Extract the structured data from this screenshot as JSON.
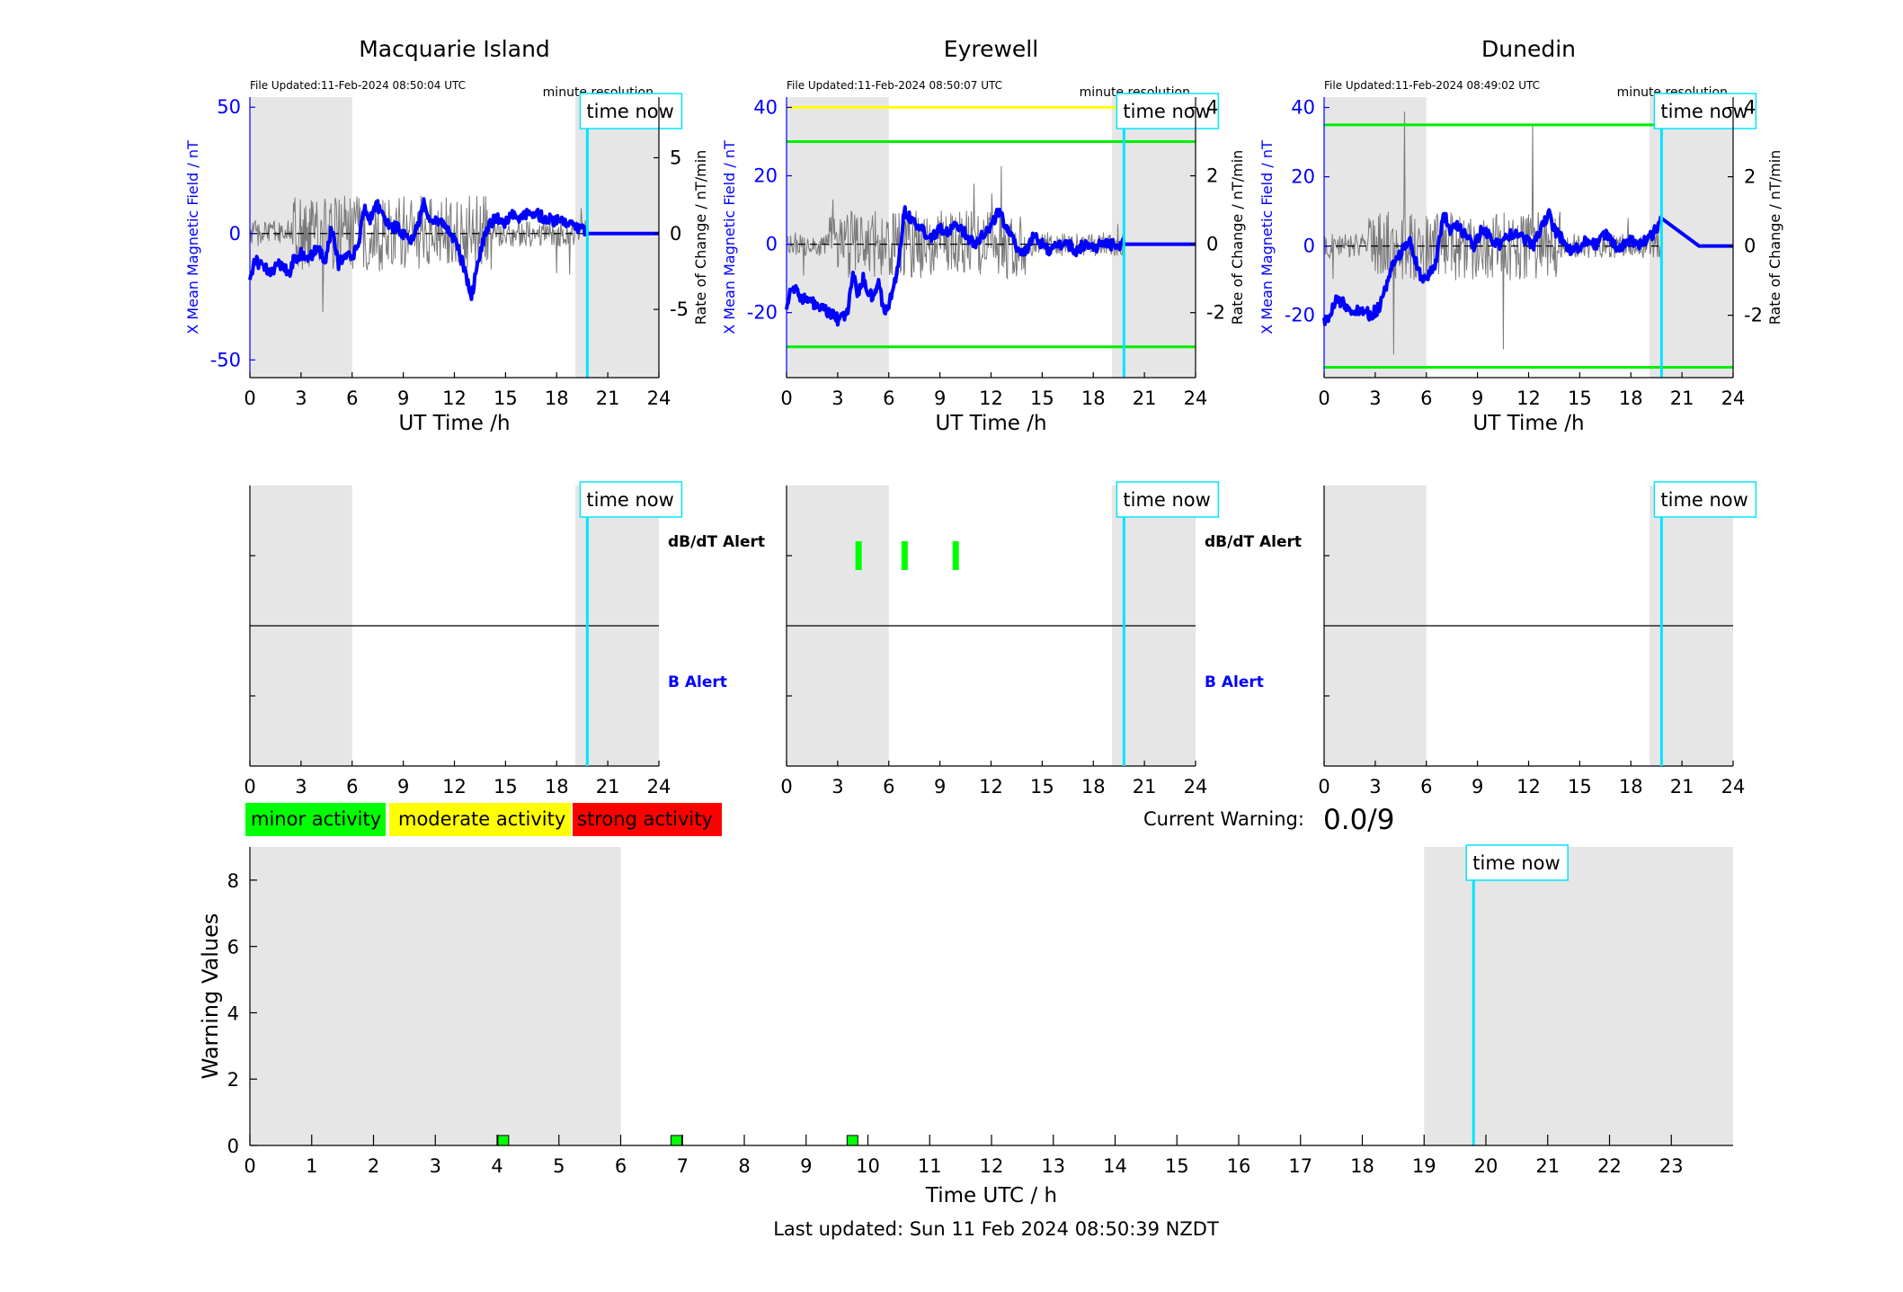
{
  "colors": {
    "night_shade": "#e6e6e6",
    "b_line": "#0000ff",
    "rate_line": "#7a7a7a",
    "time_now": "#00e5ff",
    "minor": "#00ff00",
    "moderate": "#ffff00",
    "strong": "#ff0000",
    "threshold_green": "#00ee00",
    "threshold_yellow": "#ffff00",
    "axis_blue": "#0000ff"
  },
  "legend": {
    "minor": "minor activity",
    "moderate": "moderate activity",
    "strong": "strong activity"
  },
  "current_warning": {
    "label": "Current Warning:",
    "value": "0.0/9"
  },
  "footer": {
    "last_updated": "Last updated: Sun 11 Feb 2024 08:50:39 NZDT"
  },
  "chart_data": [
    {
      "type": "line",
      "title": "Macquarie Island",
      "file_updated": "File Updated:11-Feb-2024 08:50:04 UTC",
      "resolution_label": "minute resolution",
      "time_now_label": "time now",
      "time_now": 19.8,
      "xlabel": "UT Time /h",
      "xlim": [
        0,
        24
      ],
      "xticks": [
        "0",
        "3",
        "6",
        "9",
        "12",
        "15",
        "18",
        "21",
        "24"
      ],
      "ylabel_left": "X Mean Magnetic Field / nT",
      "ylim_left": [
        -57,
        54
      ],
      "yticks_left": [
        "-50",
        "0",
        "50"
      ],
      "ylabel_right": "Rate of Change / nT/min",
      "ylim_right": [
        -9.5,
        9
      ],
      "yticks_right": [
        "-5",
        "0",
        "5"
      ],
      "night_bands": [
        [
          0,
          6
        ],
        [
          19.1,
          24
        ]
      ],
      "thresholds": [],
      "series": [
        {
          "role": "field",
          "x": [
            0,
            0.3,
            0.8,
            1.3,
            1.8,
            2.3,
            2.6,
            3.0,
            3.5,
            4.0,
            4.4,
            4.8,
            5.2,
            5.6,
            6.0,
            6.4,
            6.7,
            7.0,
            7.4,
            7.8,
            8.2,
            8.6,
            9.0,
            9.4,
            9.8,
            10.2,
            10.6,
            11.0,
            11.4,
            11.8,
            12.2,
            12.6,
            13.0,
            13.2,
            13.6,
            14.0,
            14.5,
            15.0,
            15.5,
            16.0,
            16.5,
            17.0,
            17.5,
            18.0,
            18.5,
            19.0,
            19.5,
            19.8,
            20.2,
            22,
            24
          ],
          "values": [
            -18,
            -10,
            -14,
            -15,
            -12,
            -16,
            -10,
            -8,
            -10,
            -5,
            -12,
            2,
            -12,
            -8,
            -10,
            -3,
            10,
            5,
            12,
            8,
            2,
            3,
            0,
            -4,
            2,
            12,
            6,
            5,
            4,
            0,
            -5,
            -15,
            -25,
            -18,
            -5,
            4,
            6,
            4,
            8,
            6,
            9,
            7,
            6,
            5,
            4,
            3,
            2,
            0,
            0,
            0,
            0
          ]
        },
        {
          "role": "rate",
          "amplitude": 2.5,
          "valid_until": 19.8
        }
      ],
      "alerts": {
        "dbdt_label": "dB/dT Alert",
        "b_label": "B Alert",
        "dbdt_hours": []
      }
    },
    {
      "type": "line",
      "title": "Eyrewell",
      "file_updated": "File Updated:11-Feb-2024 08:50:07 UTC",
      "resolution_label": "minute resolution",
      "time_now_label": "time now",
      "time_now": 19.8,
      "xlabel": "UT Time /h",
      "xlim": [
        0,
        24
      ],
      "xticks": [
        "0",
        "3",
        "6",
        "9",
        "12",
        "15",
        "18",
        "21",
        "24"
      ],
      "ylabel_left": "X Mean Magnetic Field / nT",
      "ylim_left": [
        -39,
        43
      ],
      "yticks_left": [
        "-20",
        "0",
        "20",
        "40"
      ],
      "ylabel_right": "Rate of Change / nT/min",
      "ylim_right": [
        -3.9,
        4.3
      ],
      "yticks_right": [
        "-2",
        "0",
        "2",
        "4"
      ],
      "night_bands": [
        [
          0,
          6
        ],
        [
          19.1,
          24
        ]
      ],
      "thresholds": [
        {
          "value": 40,
          "color": "yellow"
        },
        {
          "value": 30,
          "color": "green"
        },
        {
          "value": -30,
          "color": "green"
        }
      ],
      "series": [
        {
          "role": "field",
          "x": [
            0,
            0.3,
            0.6,
            1.0,
            1.5,
            2.0,
            2.5,
            3.0,
            3.3,
            3.6,
            3.9,
            4.2,
            4.5,
            4.8,
            5.1,
            5.4,
            5.7,
            6.0,
            6.3,
            6.6,
            6.9,
            7.2,
            7.6,
            8.0,
            8.5,
            9.0,
            9.5,
            10.0,
            10.5,
            11.0,
            11.5,
            12.0,
            12.4,
            12.8,
            13.2,
            13.6,
            14.0,
            14.5,
            15.0,
            15.5,
            16.0,
            16.5,
            17.0,
            17.5,
            18.0,
            18.5,
            19.0,
            19.8,
            22,
            24
          ],
          "values": [
            -18,
            -12,
            -14,
            -16,
            -17,
            -19,
            -20,
            -22,
            -21,
            -20,
            -8,
            -15,
            -10,
            -14,
            -16,
            -10,
            -20,
            -18,
            -12,
            -5,
            10,
            8,
            6,
            4,
            2,
            5,
            3,
            6,
            3,
            0,
            3,
            5,
            10,
            6,
            3,
            -2,
            -2,
            2,
            0,
            -2,
            0,
            0,
            -2,
            0,
            -1,
            0,
            0,
            0,
            0,
            0
          ]
        },
        {
          "role": "rate",
          "amplitude": 1.0,
          "valid_until": 19.8
        }
      ],
      "alerts": {
        "dbdt_label": "dB/dT Alert",
        "b_label": "B Alert",
        "dbdt_hours": [
          4.2,
          6.9,
          9.9
        ]
      }
    },
    {
      "type": "line",
      "title": "Dunedin",
      "file_updated": "File Updated:11-Feb-2024 08:49:02 UTC",
      "resolution_label": "minute resolution",
      "time_now_label": "time now",
      "time_now": 19.8,
      "xlabel": "UT Time /h",
      "xlim": [
        0,
        24
      ],
      "xticks": [
        "0",
        "3",
        "6",
        "9",
        "12",
        "15",
        "18",
        "21",
        "24"
      ],
      "ylabel_left": "X Mean Magnetic Field / nT",
      "ylim_left": [
        -38,
        43
      ],
      "yticks_left": [
        "-20",
        "0",
        "20",
        "40"
      ],
      "ylabel_right": "Rate of Change / nT/min",
      "ylim_right": [
        -3.8,
        4.3
      ],
      "yticks_right": [
        "-2",
        "0",
        "2",
        "4"
      ],
      "night_bands": [
        [
          0,
          6
        ],
        [
          19.1,
          24
        ]
      ],
      "thresholds": [
        {
          "value": 35,
          "color": "green"
        },
        {
          "value": -35,
          "color": "green"
        }
      ],
      "series": [
        {
          "role": "field",
          "x": [
            0,
            0.3,
            0.7,
            1.2,
            1.7,
            2.2,
            2.7,
            3.2,
            3.6,
            4.0,
            4.5,
            5.0,
            5.4,
            5.8,
            6.2,
            6.6,
            7.0,
            7.4,
            7.8,
            8.3,
            8.8,
            9.3,
            9.8,
            10.3,
            10.8,
            11.3,
            11.8,
            12.3,
            12.8,
            13.2,
            13.6,
            14.0,
            14.5,
            15.0,
            15.5,
            16.0,
            16.5,
            17.0,
            17.5,
            18.0,
            18.5,
            19.0,
            19.5,
            19.8,
            22,
            24
          ],
          "values": [
            -22,
            -20,
            -15,
            -17,
            -19,
            -18,
            -20,
            -18,
            -12,
            -5,
            -2,
            2,
            -5,
            -10,
            -8,
            -4,
            10,
            4,
            6,
            3,
            0,
            5,
            2,
            0,
            3,
            4,
            2,
            0,
            6,
            9,
            4,
            2,
            -2,
            0,
            2,
            0,
            4,
            0,
            0,
            2,
            0,
            2,
            5,
            8,
            0,
            0
          ]
        },
        {
          "role": "rate",
          "amplitude": 1.0,
          "valid_until": 19.8
        }
      ],
      "alerts": {
        "dbdt_label": "",
        "b_label": "",
        "dbdt_hours": []
      }
    },
    {
      "type": "bar",
      "ylabel": "Warning Values",
      "xlabel": "Time UTC / h",
      "xlim": [
        0,
        24
      ],
      "ylim": [
        0,
        9
      ],
      "xticks": [
        "0",
        "1",
        "2",
        "3",
        "4",
        "5",
        "6",
        "7",
        "8",
        "9",
        "10",
        "11",
        "12",
        "13",
        "14",
        "15",
        "16",
        "17",
        "18",
        "19",
        "20",
        "21",
        "22",
        "23"
      ],
      "yticks": [
        "0",
        "2",
        "4",
        "6",
        "8"
      ],
      "night_bands": [
        [
          0,
          6
        ],
        [
          19,
          24
        ]
      ],
      "time_now_label": "time now",
      "time_now": 19.8,
      "x": [
        4.1,
        6.9,
        9.75
      ],
      "values": [
        0.3,
        0.3,
        0.3
      ],
      "colors": [
        "minor",
        "minor",
        "minor"
      ]
    }
  ]
}
